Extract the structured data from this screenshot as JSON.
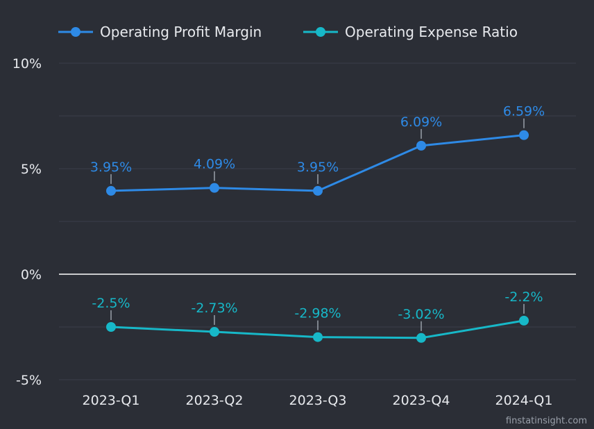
{
  "chart_data": {
    "type": "line",
    "categories": [
      "2023-Q1",
      "2023-Q2",
      "2023-Q3",
      "2023-Q4",
      "2024-Q1"
    ],
    "series": [
      {
        "name": "Operating Profit Margin",
        "values": [
          3.95,
          4.09,
          3.95,
          6.09,
          6.59
        ],
        "labels": [
          "3.95%",
          "4.09%",
          "3.95%",
          "6.09%",
          "6.59%"
        ],
        "color": "#2e8ae6"
      },
      {
        "name": "Operating Expense Ratio",
        "values": [
          -2.5,
          -2.73,
          -2.98,
          -3.02,
          -2.2
        ],
        "labels": [
          "-2.5%",
          "-2.73%",
          "-2.98%",
          "-3.02%",
          "-2.2%"
        ],
        "color": "#17b8c8"
      }
    ],
    "ylim": [
      -5,
      10
    ],
    "yticks": [
      10,
      5,
      0,
      -5
    ],
    "ytick_labels": [
      "10%",
      "5%",
      "0%",
      "-5%"
    ],
    "grid": true,
    "legend_position": "top-left"
  },
  "watermark": "finstatinsight.com"
}
